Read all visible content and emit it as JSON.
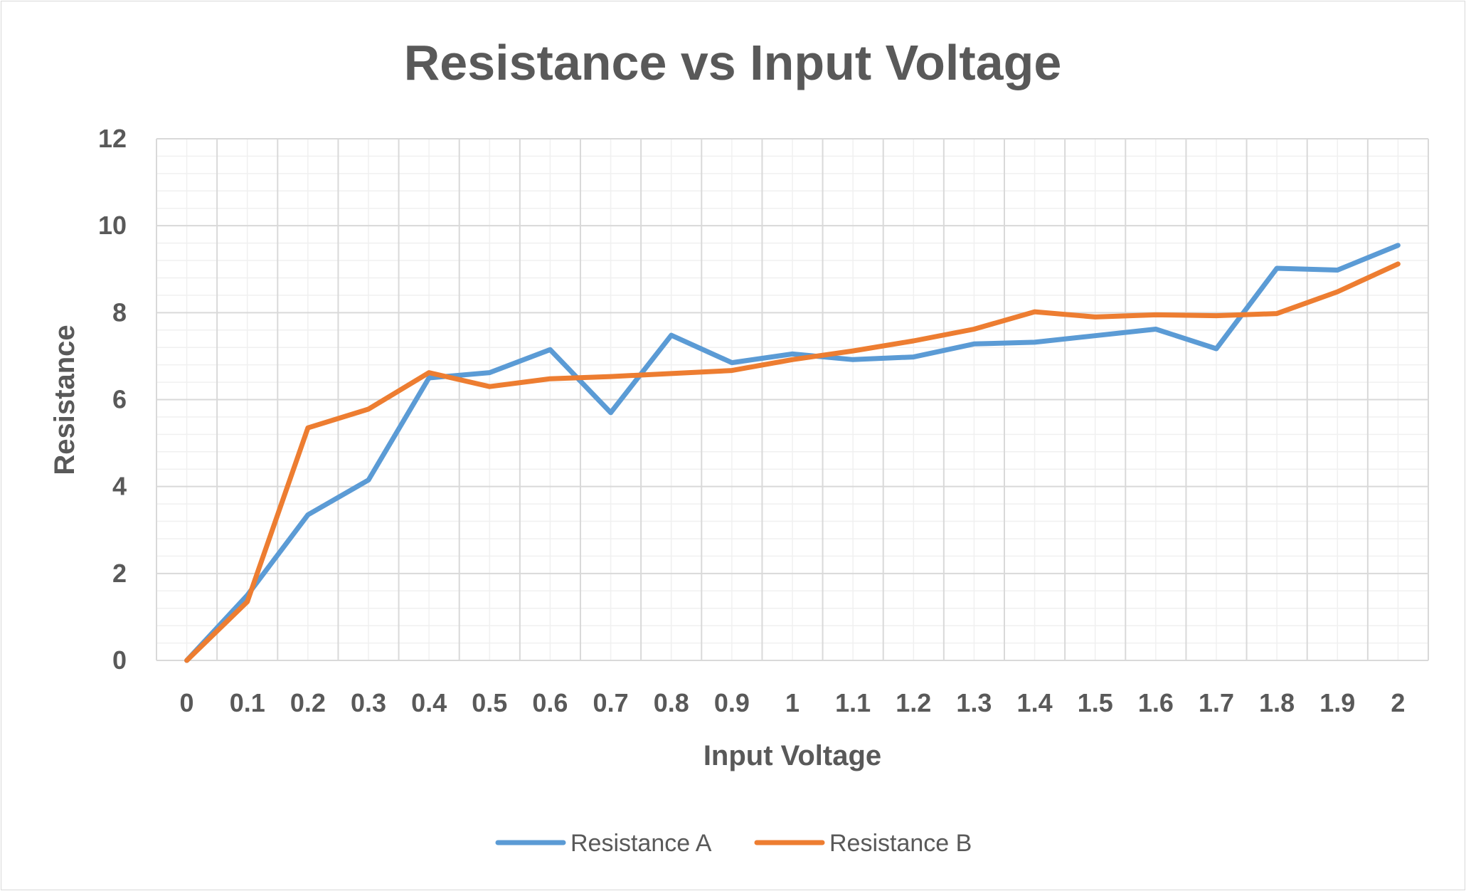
{
  "chart_data": {
    "type": "line",
    "title": "Resistance vs Input Voltage",
    "xlabel": "Input Voltage",
    "ylabel": "Resistance",
    "categories": [
      "0",
      "0.1",
      "0.2",
      "0.3",
      "0.4",
      "0.5",
      "0.6",
      "0.7",
      "0.8",
      "0.9",
      "1",
      "1.1",
      "1.2",
      "1.3",
      "1.4",
      "1.5",
      "1.6",
      "1.7",
      "1.8",
      "1.9",
      "2"
    ],
    "y_ticks": [
      "0",
      "2",
      "4",
      "6",
      "8",
      "10",
      "12"
    ],
    "ylim": [
      0,
      12
    ],
    "grid": true,
    "legend_position": "bottom",
    "series": [
      {
        "name": "Resistance A",
        "color": "#5b9bd5",
        "values": [
          0,
          1.5,
          3.35,
          4.15,
          6.5,
          6.62,
          7.15,
          5.7,
          7.48,
          6.85,
          7.05,
          6.92,
          6.98,
          7.28,
          7.32,
          7.47,
          7.62,
          7.17,
          9.02,
          8.98,
          9.55
        ]
      },
      {
        "name": "Resistance B",
        "color": "#ed7d31",
        "values": [
          0,
          1.35,
          5.35,
          5.78,
          6.62,
          6.3,
          6.48,
          6.53,
          6.6,
          6.67,
          6.92,
          7.12,
          7.35,
          7.62,
          8.02,
          7.9,
          7.95,
          7.93,
          7.98,
          8.48,
          9.12
        ]
      }
    ]
  }
}
